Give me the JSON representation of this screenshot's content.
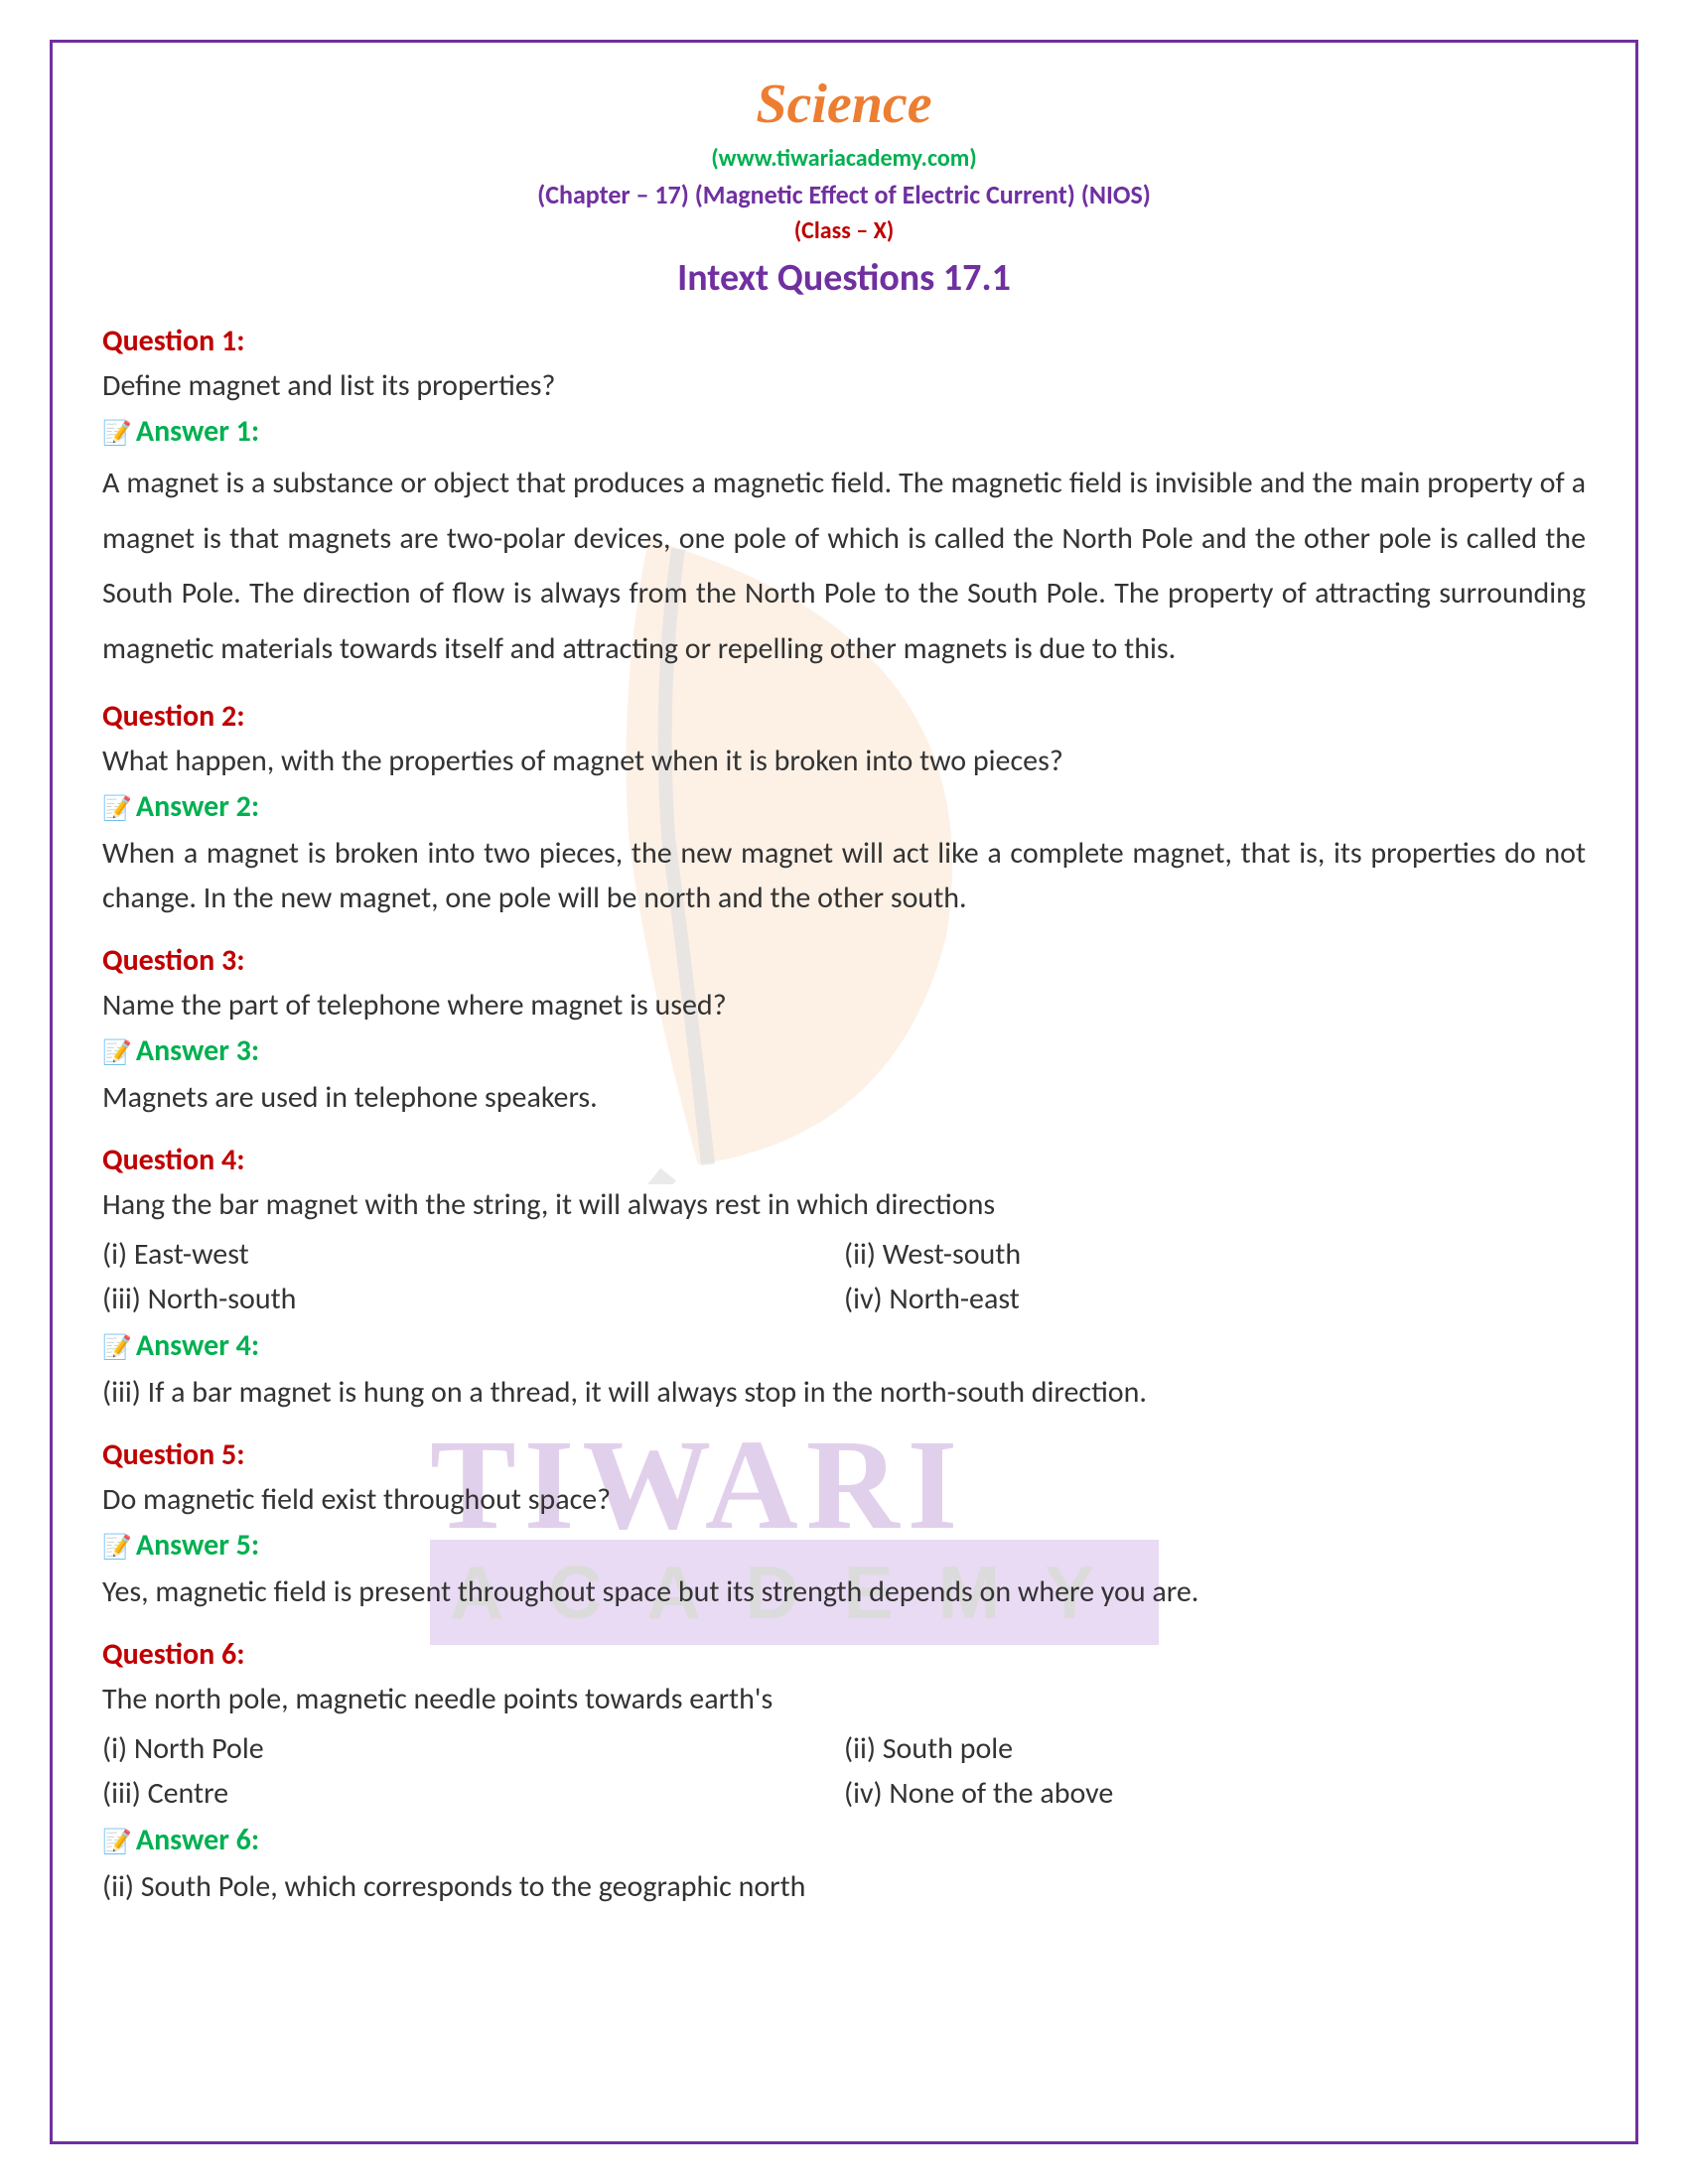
{
  "header": {
    "title": "Science",
    "website": "(www.tiwariacademy.com)",
    "chapter": "(Chapter – 17) (Magnetic Effect of Electric Current) (NIOS)",
    "class": "(Class – X)",
    "section": "Intext Questions 17.1"
  },
  "questions": [
    {
      "qlabel": "Question 1:",
      "qtext": "Define magnet and list its properties?",
      "alabel": "Answer 1:",
      "atext": "A magnet is a substance or object that produces a magnetic field. The magnetic field is invisible and the main property of a magnet is that magnets are two-polar devices, one pole of which is called the North Pole and the other pole is called the South Pole. The direction of flow is always from the North Pole to the South Pole. The property of attracting surrounding magnetic materials towards itself and attracting or repelling other magnets is due to this.",
      "long": true
    },
    {
      "qlabel": "Question 2:",
      "qtext": "What happen, with the properties of magnet when it is broken into two pieces?",
      "alabel": "Answer 2:",
      "atext": "When a magnet is broken into two pieces, the new magnet will act like a complete magnet, that is, its properties do not change. In the new magnet, one pole will be north and the other south."
    },
    {
      "qlabel": "Question 3:",
      "qtext": "Name the part of telephone where magnet is used?",
      "alabel": "Answer 3:",
      "atext": "Magnets are used in telephone speakers."
    },
    {
      "qlabel": "Question 4:",
      "qtext": "Hang the bar magnet with the string, it will always rest in which directions",
      "options": [
        "(i) East-west",
        "(ii) West-south",
        "(iii) North-south",
        "(iv) North-east"
      ],
      "alabel": "Answer 4:",
      "atext": "(iii) If a bar magnet is hung on a thread, it will always stop in the north-south direction."
    },
    {
      "qlabel": "Question 5:",
      "qtext": "Do magnetic field exist throughout space?",
      "alabel": "Answer 5:",
      "atext": "Yes, magnetic field is present throughout space but its strength depends on where you are."
    },
    {
      "qlabel": "Question 6:",
      "qtext": "The north pole, magnetic needle points towards earth's",
      "options": [
        "(i) North Pole",
        "(ii) South pole",
        "(iii) Centre",
        "(iv) None of the above"
      ],
      "alabel": "Answer 6:",
      "atext": "(ii) South Pole, which corresponds to the geographic north"
    }
  ],
  "watermark": {
    "line1": "TIWARI",
    "line2": "ACADEMY"
  },
  "colors": {
    "border": "#7030a0",
    "title": "#ed7d31",
    "website": "#00b050",
    "chapter": "#7030a0",
    "class": "#c00000",
    "question": "#c00000",
    "answer": "#00b050",
    "body": "#333333"
  }
}
